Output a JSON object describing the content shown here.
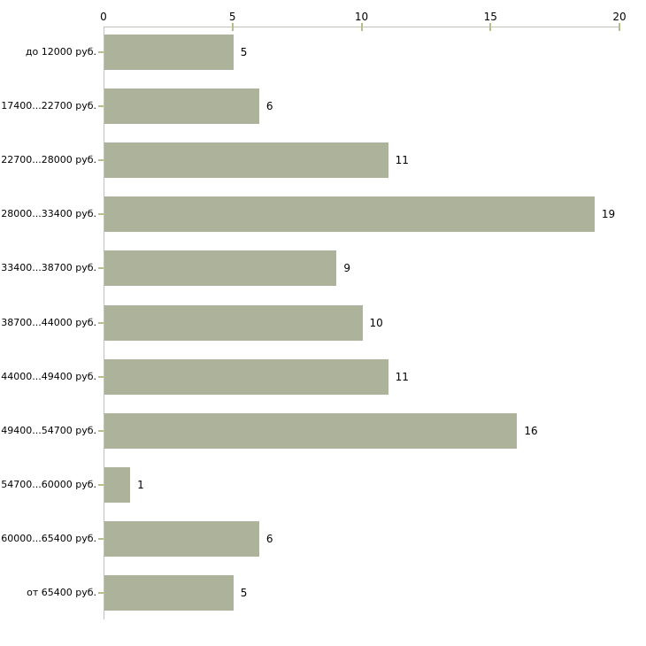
{
  "chart_data": {
    "type": "bar",
    "orientation": "horizontal",
    "categories": [
      "до 12000 руб.",
      "17400...22700 руб.",
      "22700...28000 руб.",
      "28000...33400 руб.",
      "33400...38700 руб.",
      "38700...44000 руб.",
      "44000...49400 руб.",
      "49400...54700 руб.",
      "54700...60000 руб.",
      "60000...65400 руб.",
      "от 65400 руб."
    ],
    "values": [
      5,
      6,
      11,
      19,
      9,
      10,
      11,
      16,
      1,
      6,
      5
    ],
    "value_labels": [
      "5",
      "6",
      "11",
      "19",
      "9",
      "10",
      "11",
      "16",
      "1",
      "6",
      "5"
    ],
    "xlim": [
      0,
      20
    ],
    "xticks": [
      0,
      5,
      10,
      15,
      20
    ],
    "grid": false,
    "legend": false,
    "title": "",
    "xlabel": "",
    "ylabel": "",
    "colors": {
      "bar": "#adb39a",
      "axis_line": "#c2c2ba",
      "tick_mark": "#b9bc8b",
      "text": "#000000",
      "background": "#ffffff"
    }
  }
}
